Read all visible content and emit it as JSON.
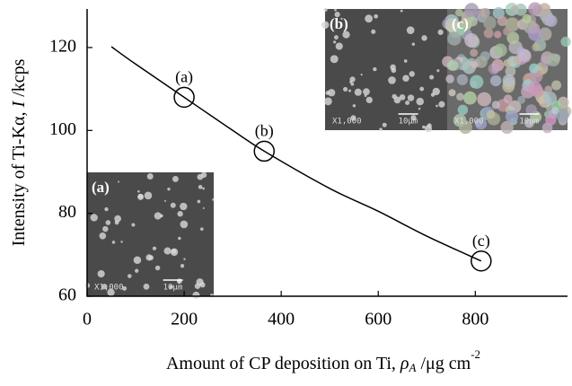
{
  "chart_data": {
    "type": "line",
    "x_label": {
      "text": "Amount of CP deposition on Ti, ",
      "symbol": "ρ",
      "subscript": "A",
      "unit": " /μg cm",
      "exponent": "-2"
    },
    "y_label": {
      "text": "Intensity of Ti-Kα, ",
      "symbol": "I",
      "unit": " /kcps"
    },
    "x": [
      50,
      100,
      200,
      300,
      365,
      500,
      600,
      700,
      812
    ],
    "values": [
      120.2,
      116,
      108,
      100,
      95,
      86,
      80.5,
      74.5,
      68.5
    ],
    "color": "#000000",
    "markers": {
      "x": [
        200,
        365,
        812
      ],
      "values": [
        108,
        95,
        68.5
      ]
    },
    "annotations": [
      {
        "text": "(a)",
        "x": 200,
        "y": 112.5
      },
      {
        "text": "(b)",
        "x": 365,
        "y": 99.5
      },
      {
        "text": "(c)",
        "x": 812,
        "y": 73
      }
    ],
    "insets": [
      {
        "label": "(a)",
        "magnification": "X1,000",
        "scale": "10μm"
      },
      {
        "label": "(b)",
        "magnification": "X1,000",
        "scale": "10μm"
      },
      {
        "label": "(c)",
        "magnification": "X1,000",
        "scale": "10μm"
      }
    ],
    "xlim": [
      0,
      990
    ],
    "ylim": [
      60,
      129.3
    ],
    "xticks": [
      0,
      200,
      400,
      600,
      800
    ],
    "yticks": [
      60,
      80,
      100,
      120
    ]
  }
}
